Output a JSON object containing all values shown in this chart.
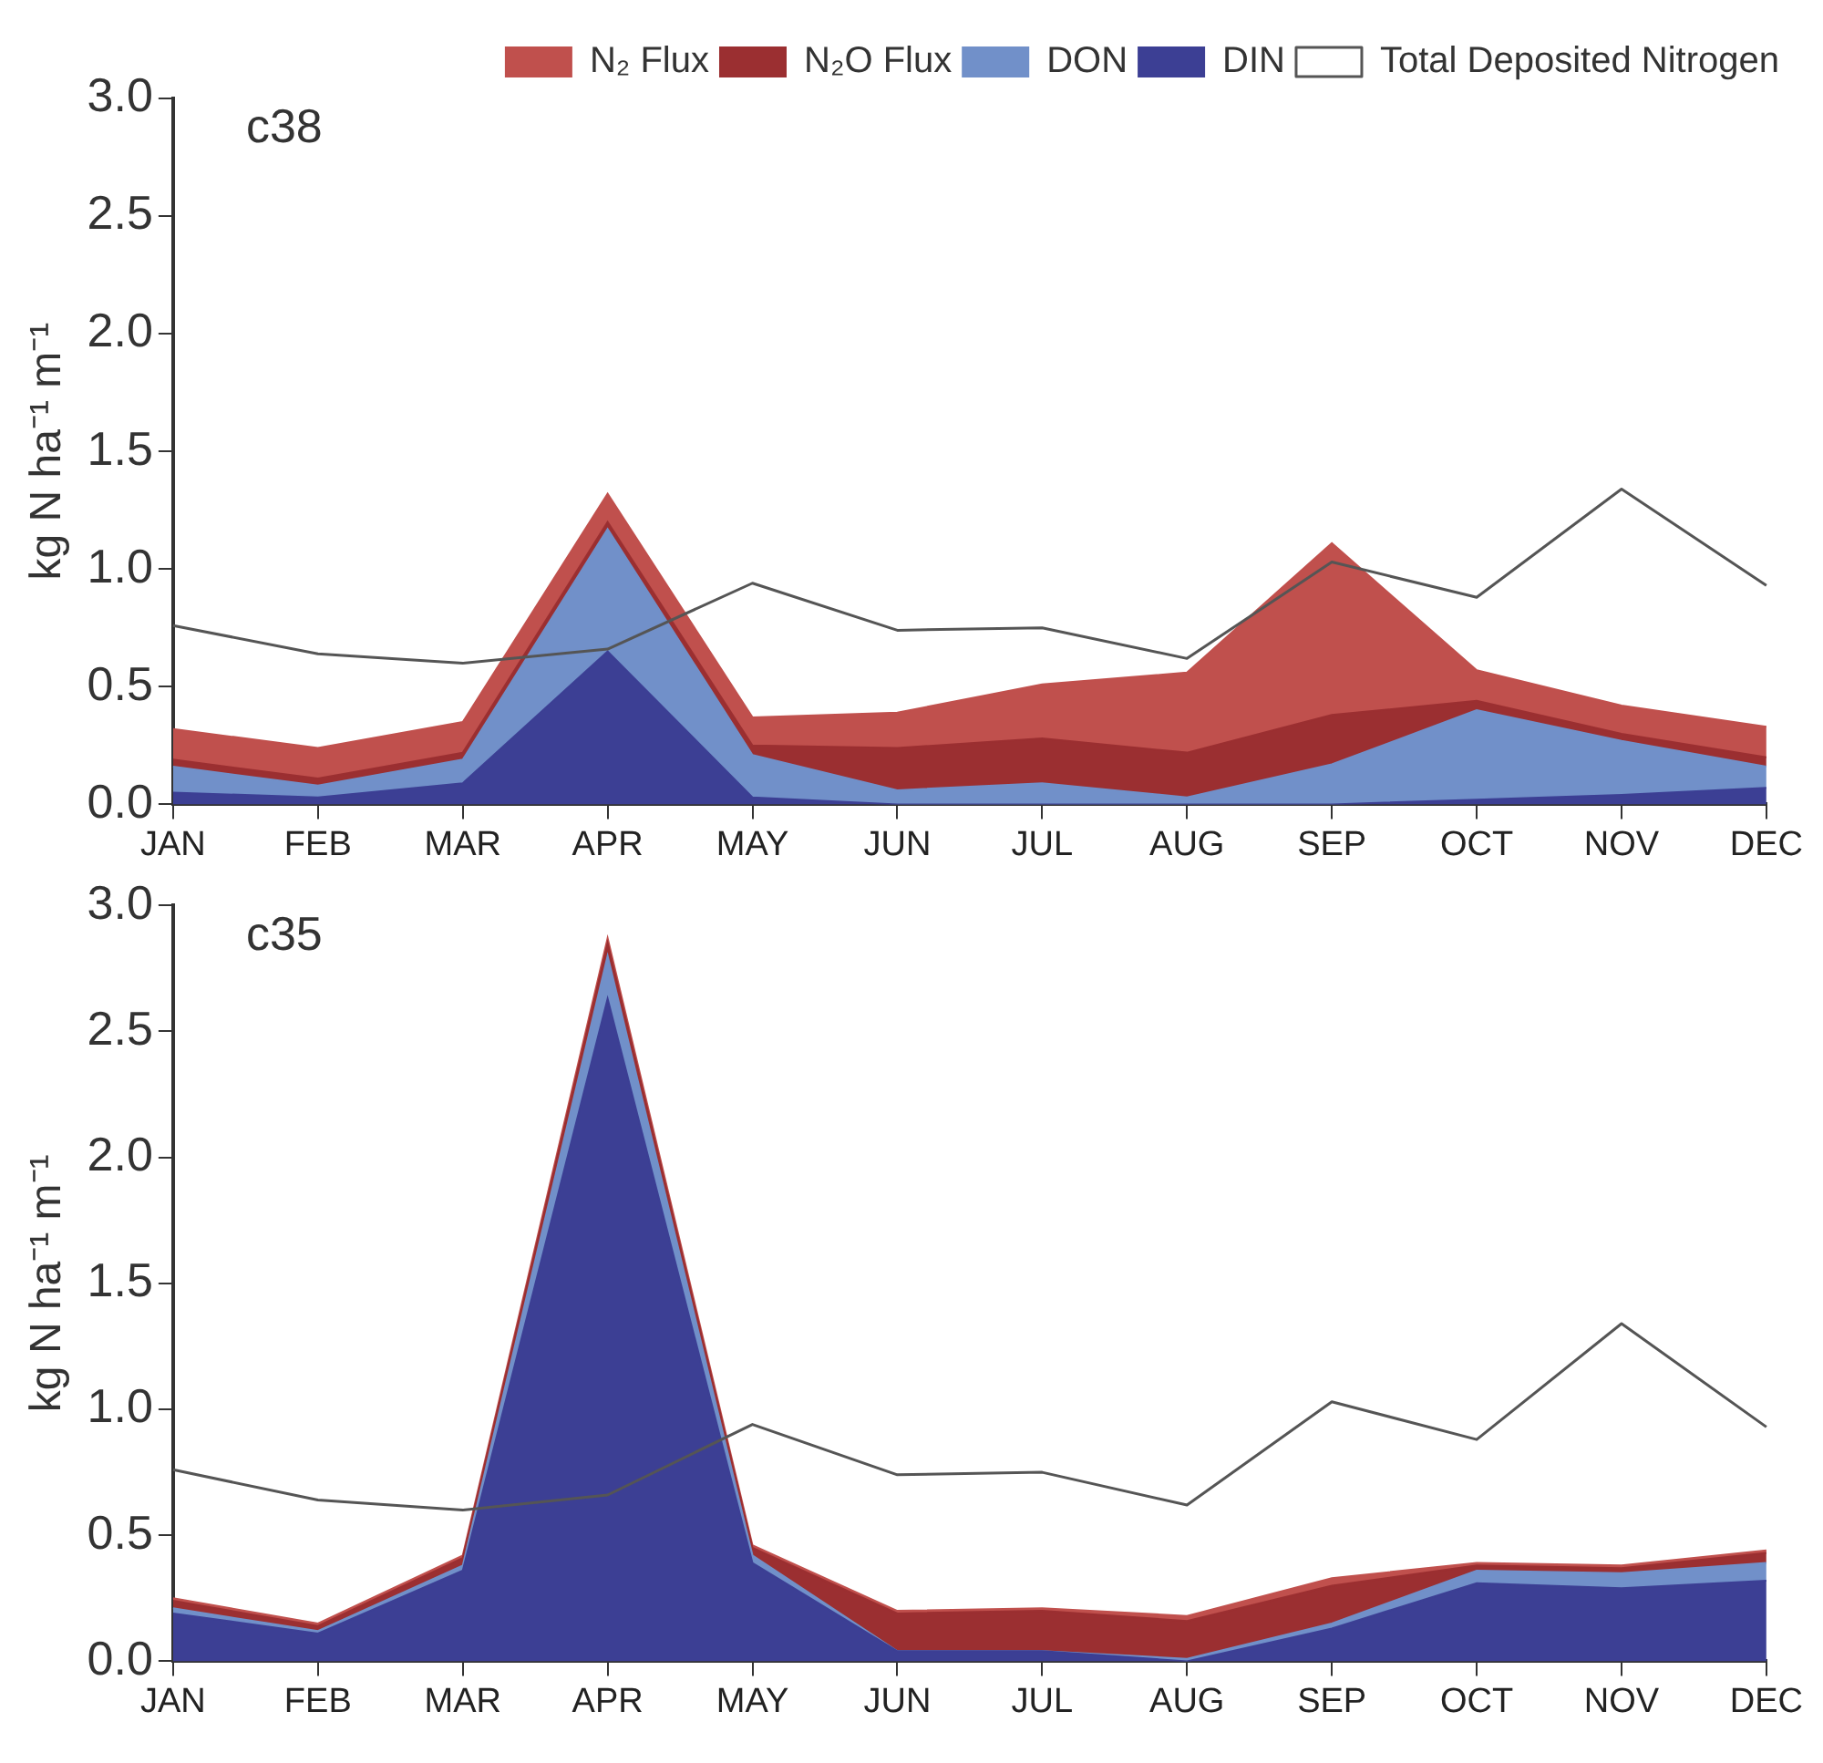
{
  "chart_data": [
    {
      "type": "area",
      "title": "c38",
      "ylabel": "kg N ha⁻¹ m⁻¹",
      "categories": [
        "JAN",
        "FEB",
        "MAR",
        "APR",
        "MAY",
        "JUN",
        "JUL",
        "AUG",
        "SEP",
        "OCT",
        "NOV",
        "DEC"
      ],
      "stacked": true,
      "ylim": [
        0,
        3
      ],
      "yticks": [
        {
          "value": 0,
          "label": "0.0"
        },
        {
          "value": 0.5,
          "label": "0.5"
        },
        {
          "value": 1,
          "label": "1.0"
        },
        {
          "value": 1.5,
          "label": "1.5"
        },
        {
          "value": 2,
          "label": "2.0"
        },
        {
          "value": 2.5,
          "label": "2.5"
        },
        {
          "value": 3,
          "label": "3.0"
        }
      ],
      "grid": false,
      "legend": "top right",
      "series": [
        {
          "name": "DIN",
          "color": "#3c3f94",
          "values": [
            0.05,
            0.03,
            0.09,
            0.65,
            0.03,
            0,
            0,
            0,
            0,
            0.02,
            0.04,
            0.07
          ]
        },
        {
          "name": "DON",
          "color": "#7190c9",
          "values": [
            0.11,
            0.05,
            0.1,
            0.52,
            0.18,
            0.06,
            0.09,
            0.03,
            0.17,
            0.38,
            0.23,
            0.09
          ]
        },
        {
          "name": "N₂O Flux",
          "color": "#9b2f31",
          "values": [
            0.03,
            0.03,
            0.03,
            0.03,
            0.04,
            0.18,
            0.19,
            0.19,
            0.21,
            0.04,
            0.03,
            0.04
          ]
        },
        {
          "name": "N₂ Flux",
          "color": "#c0504d",
          "values": [
            0.13,
            0.13,
            0.13,
            0.12,
            0.12,
            0.15,
            0.23,
            0.34,
            0.73,
            0.13,
            0.12,
            0.13
          ]
        },
        {
          "name": "Total Deposited Nitrogen",
          "type": "line",
          "color": "#555555",
          "values": [
            0.76,
            0.64,
            0.6,
            0.66,
            0.94,
            0.74,
            0.75,
            0.62,
            1.03,
            0.88,
            1.34,
            0.93
          ]
        }
      ]
    },
    {
      "type": "area",
      "title": "c35",
      "ylabel": "kg N ha⁻¹ m⁻¹",
      "categories": [
        "JAN",
        "FEB",
        "MAR",
        "APR",
        "MAY",
        "JUN",
        "JUL",
        "AUG",
        "SEP",
        "OCT",
        "NOV",
        "DEC"
      ],
      "stacked": true,
      "ylim": [
        0,
        3
      ],
      "yticks": [
        {
          "value": 0,
          "label": "0.0"
        },
        {
          "value": 0.5,
          "label": "0.5"
        },
        {
          "value": 1,
          "label": "1.0"
        },
        {
          "value": 1.5,
          "label": "1.5"
        },
        {
          "value": 2,
          "label": "2.0"
        },
        {
          "value": 2.5,
          "label": "2.5"
        },
        {
          "value": 3,
          "label": "3.0"
        }
      ],
      "grid": false,
      "legend": false,
      "series": [
        {
          "color": "#3c3f94",
          "values": [
            0.19,
            0.11,
            0.36,
            2.63,
            0.39,
            0.04,
            0.04,
            0,
            0.13,
            0.31,
            0.29,
            0.32
          ]
        },
        {
          "color": "#7190c9",
          "values": [
            0.02,
            0.01,
            0.02,
            0.17,
            0.03,
            0,
            0,
            0.01,
            0.02,
            0.05,
            0.06,
            0.07
          ]
        },
        {
          "color": "#9b2f31",
          "values": [
            0.03,
            0.02,
            0.03,
            0.05,
            0.03,
            0.15,
            0.16,
            0.15,
            0.15,
            0.02,
            0.02,
            0.04
          ]
        },
        {
          "color": "#c0504d",
          "values": [
            0.01,
            0.01,
            0.01,
            0.02,
            0.01,
            0.01,
            0.01,
            0.02,
            0.03,
            0.01,
            0.01,
            0.01
          ]
        },
        {
          "type": "line",
          "color": "#555555",
          "values": [
            0.76,
            0.64,
            0.6,
            0.66,
            0.94,
            0.74,
            0.75,
            0.62,
            1.03,
            0.88,
            1.34,
            0.93
          ]
        }
      ]
    }
  ]
}
